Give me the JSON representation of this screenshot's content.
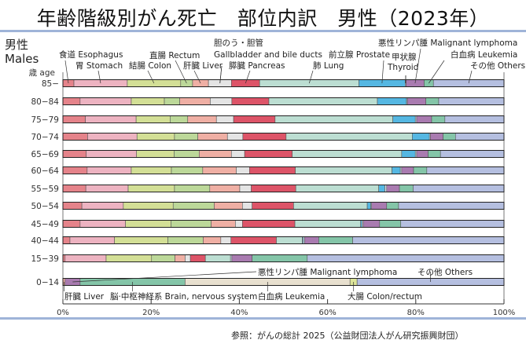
{
  "title": "年齢階級別がん死亡　部位内訳　男性（2023年）",
  "source": "参照：がんの総計 2025（公益財団法人がん研究振興財団）",
  "chart_data": {
    "type": "bar",
    "orientation": "horizontal-stacked-100",
    "title": "年齢階級別がん死亡　部位内訳　男性（2023年）",
    "group_label_jp": "男性",
    "group_label_en": "Males",
    "ylabel": "歳 age",
    "xlabel": "",
    "xlim": [
      0,
      100
    ],
    "xticks": [
      "0%",
      "20%",
      "40%",
      "60%",
      "80%",
      "100%"
    ],
    "categories": [
      "85−",
      "80−84",
      "75−79",
      "70−74",
      "65−69",
      "60−64",
      "55−59",
      "50−54",
      "45−49",
      "40−44",
      "15−39",
      "0−14"
    ],
    "series": [
      {
        "name": "食道 Esophagus",
        "color": "#e5838a",
        "values": [
          2.5,
          3.9,
          5.1,
          5.6,
          5.3,
          5.5,
          5.2,
          4.3,
          3.9,
          1.6,
          0.5,
          0
        ]
      },
      {
        "name": "胃 Stomach",
        "color": "#edb3c1",
        "values": [
          12.1,
          11.6,
          11.5,
          11.2,
          11.4,
          10.0,
          9.6,
          9.4,
          10.3,
          10.1,
          9.3,
          0
        ]
      },
      {
        "name": "結腸 Colon",
        "color": "#d3df96",
        "values": [
          12.1,
          7.5,
          7.7,
          8.5,
          8.5,
          9.1,
          10.5,
          11.3,
          10.3,
          12.1,
          10.3,
          0
        ]
      },
      {
        "name": "直腸 Rectum",
        "color": "#bcd899",
        "values": [
          2.7,
          3.5,
          4.0,
          5.3,
          5.7,
          7.1,
          8.0,
          9.3,
          9.1,
          8.0,
          5.3,
          0
        ]
      },
      {
        "name": "肝臓 Liver",
        "color": "#efafa4",
        "values": [
          3.6,
          6.9,
          6.5,
          6.7,
          7.3,
          7.6,
          6.8,
          6.4,
          5.5,
          4.0,
          2.3,
          0.5
        ]
      },
      {
        "name": "胆のう・胆管 Gallbladder and bile ducts",
        "color": "#e4e4e4",
        "values": [
          5.2,
          4.9,
          3.9,
          3.5,
          3.0,
          3.0,
          2.6,
          2.2,
          1.6,
          2.3,
          1.2,
          0
        ]
      },
      {
        "name": "脾臓 Pancreas",
        "color": "#dd5468",
        "values": [
          6.4,
          8.4,
          9.4,
          9.8,
          10.8,
          10.4,
          10.1,
          9.4,
          11.9,
          10.3,
          3.4,
          0
        ]
      },
      {
        "name": "肺 Lung",
        "color": "#bcded2",
        "values": [
          22.5,
          24.6,
          26.7,
          28.6,
          24.8,
          21.9,
          18.8,
          16.7,
          14.9,
          5.9,
          5.7,
          0
        ]
      },
      {
        "name": "前立腺 Prostate",
        "color": "#55b7e2",
        "values": [
          10.5,
          6.6,
          5.1,
          3.9,
          3.1,
          1.9,
          1.4,
          0.8,
          0.3,
          0.2,
          0,
          0
        ]
      },
      {
        "name": "甲状腺 Thyroid",
        "color": "#cfe0ea",
        "values": [
          0.2,
          0.2,
          0.3,
          0.2,
          0.3,
          0.3,
          0.4,
          0.2,
          0.3,
          0.3,
          0.3,
          0
        ]
      },
      {
        "name": "悪性リンパ腫 Malignant lymphoma",
        "color": "#a97bb0",
        "values": [
          4.1,
          4.2,
          3.4,
          2.9,
          2.6,
          2.7,
          2.9,
          3.4,
          3.7,
          3.2,
          4.6,
          3.4
        ]
      },
      {
        "name": "白血病 Leukemia",
        "color": "#84c5a8",
        "values": [
          2.1,
          2.9,
          3.0,
          2.8,
          2.8,
          3.0,
          3.1,
          2.7,
          4.8,
          7.7,
          12.5,
          23.8
        ]
      },
      {
        "name": "脳・中枢神経系 Brain, nervous system",
        "color": "#e8e0cf",
        "values": [
          0,
          0,
          0,
          0,
          0,
          0,
          0,
          0,
          0,
          0,
          0,
          37.4
        ]
      },
      {
        "name": "大腸 Colon/rectum",
        "color": "#dde599",
        "values": [
          0,
          0,
          0,
          0,
          0,
          0,
          0,
          0,
          0,
          0,
          0,
          1.6
        ]
      },
      {
        "name": "その他 Others",
        "color": "#b5bfe0",
        "values": [
          16.0,
          14.8,
          13.4,
          11.0,
          14.4,
          17.5,
          20.6,
          23.9,
          23.4,
          34.3,
          44.6,
          33.3
        ]
      }
    ],
    "annotations_top": [
      {
        "text": "食道 Esophagus",
        "series": 0
      },
      {
        "text": "胃 Stomach",
        "series": 1
      },
      {
        "text": "結腸 Colon",
        "series": 2
      },
      {
        "text": "直腸 Rectum",
        "series": 3
      },
      {
        "text": "肝臓 Liver",
        "series": 4
      },
      {
        "text": "胆のう・胆管",
        "series": 5
      },
      {
        "text": "Gallbladder and bile ducts",
        "series": 5
      },
      {
        "text": "膵臓 Pancreas",
        "series": 6
      },
      {
        "text": "肺 Lung",
        "series": 7
      },
      {
        "text": "前立腺 Prostate",
        "series": 8
      },
      {
        "text": "甲状腺",
        "series": 9
      },
      {
        "text": "Thyroid",
        "series": 9
      },
      {
        "text": "悪性リンパ腫 Malignant lymphoma",
        "series": 10
      },
      {
        "text": "白血病 Leukemia",
        "series": 11
      },
      {
        "text": "その他 Others",
        "series": 14
      }
    ],
    "annotations_child": [
      {
        "text": "肝臓 Liver",
        "series": 4
      },
      {
        "text": "脳·中枢神経系 Brain, nervous system",
        "series": 12
      },
      {
        "text": "悪性リンパ腫 Malignant lymphoma",
        "series": 10
      },
      {
        "text": "その他 Others",
        "series": 14
      },
      {
        "text": "白血病 Leukemia",
        "series": 11
      },
      {
        "text": "大腸 Colon/rectum",
        "series": 13
      }
    ]
  }
}
